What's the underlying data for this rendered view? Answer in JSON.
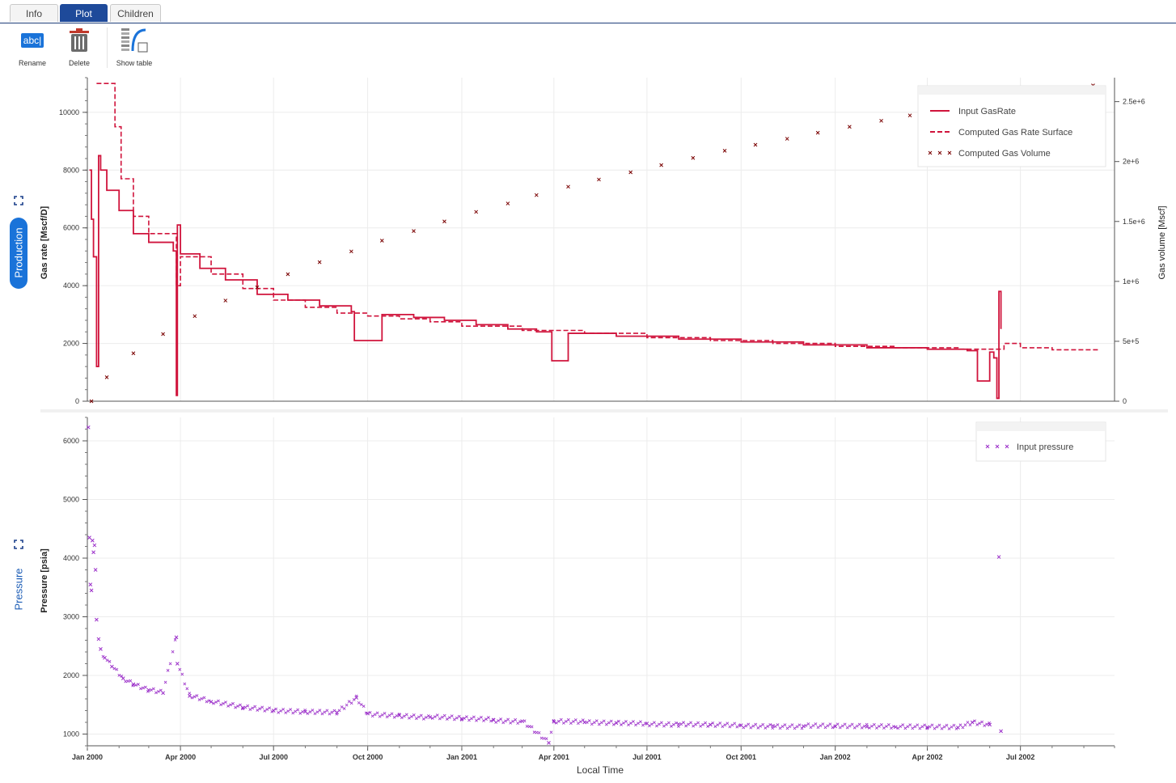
{
  "tabs": [
    {
      "label": "Info",
      "active": false
    },
    {
      "label": "Plot",
      "active": true
    },
    {
      "label": "Children",
      "active": false
    }
  ],
  "toolbar": {
    "rename_icon_text": "abc|",
    "rename_label": "Rename",
    "delete_label": "Delete",
    "show_table_label": "Show table"
  },
  "side_tabs": {
    "production": "Production",
    "pressure": "Pressure"
  },
  "colors": {
    "accent": "#1e4a9a",
    "gas": "#d0143c",
    "volume_marker": "#7a0000",
    "pressure": "#9b2fc9"
  },
  "chart_data": [
    {
      "type": "line",
      "title": "",
      "xlabel": "",
      "ylabel": "Gas rate [Mscf/D]",
      "y2label": "Gas volume [Mscf]",
      "ylim": [
        0,
        11200
      ],
      "y2lim": [
        0,
        2700000
      ],
      "y_ticks": [
        0,
        2000,
        4000,
        6000,
        8000,
        10000
      ],
      "y2_ticks": [
        {
          "value": 0,
          "label": "0"
        },
        {
          "value": 500000,
          "label": "5e+5"
        },
        {
          "value": 1000000,
          "label": "1e+6"
        },
        {
          "value": 1500000,
          "label": "1.5e+6"
        },
        {
          "value": 2000000,
          "label": "2e+6"
        },
        {
          "value": 2500000,
          "label": "2.5e+6"
        }
      ],
      "legend_position": "top-right",
      "grid": true,
      "series": [
        {
          "name": "Input GasRate",
          "style": "solid",
          "axis": "left",
          "x": [
            "2000-01-03",
            "2000-01-05",
            "2000-01-07",
            "2000-01-10",
            "2000-01-12",
            "2000-01-14",
            "2000-01-20",
            "2000-02-01",
            "2000-02-15",
            "2000-03-01",
            "2000-03-25",
            "2000-03-28",
            "2000-03-29",
            "2000-04-01",
            "2000-04-20",
            "2000-05-15",
            "2000-06-15",
            "2000-07-15",
            "2000-08-15",
            "2000-09-15",
            "2000-09-18",
            "2000-10-15",
            "2000-11-15",
            "2000-12-15",
            "2001-01-15",
            "2001-02-15",
            "2001-03-15",
            "2001-03-30",
            "2001-04-15",
            "2001-06-01",
            "2001-08-01",
            "2001-10-01",
            "2001-12-01",
            "2002-02-01",
            "2002-04-01",
            "2002-05-10",
            "2002-05-20",
            "2002-06-01",
            "2002-06-05",
            "2002-06-08",
            "2002-06-10",
            "2002-06-12"
          ],
          "y": [
            8000,
            6300,
            5000,
            1200,
            8500,
            8000,
            7300,
            6600,
            5800,
            5500,
            5200,
            200,
            6100,
            5100,
            4600,
            4200,
            3700,
            3500,
            3300,
            3100,
            2100,
            3000,
            2900,
            2800,
            2650,
            2500,
            2400,
            1400,
            2350,
            2250,
            2150,
            2050,
            1950,
            1850,
            1800,
            1750,
            700,
            1700,
            1500,
            100,
            3800,
            2500
          ]
        },
        {
          "name": "Computed Gas Rate Surface",
          "style": "dashed",
          "axis": "left",
          "x": [
            "2000-01-10",
            "2000-01-20",
            "2000-01-28",
            "2000-02-03",
            "2000-02-15",
            "2000-03-01",
            "2000-03-28",
            "2000-04-01",
            "2000-05-01",
            "2000-06-01",
            "2000-07-01",
            "2000-08-01",
            "2000-09-01",
            "2000-10-01",
            "2000-11-01",
            "2000-12-01",
            "2001-01-01",
            "2001-03-01",
            "2001-05-01",
            "2001-07-01",
            "2001-09-01",
            "2001-11-01",
            "2002-01-01",
            "2002-03-01",
            "2002-05-01",
            "2002-06-15",
            "2002-07-01",
            "2002-08-01",
            "2002-09-15"
          ],
          "y": [
            11000,
            11000,
            9500,
            7700,
            6400,
            5800,
            4000,
            5000,
            4400,
            3900,
            3500,
            3250,
            3050,
            2950,
            2850,
            2750,
            2600,
            2450,
            2350,
            2200,
            2100,
            2000,
            1900,
            1850,
            1800,
            2000,
            1850,
            1780,
            1720
          ]
        },
        {
          "name": "Computed Gas Volume",
          "style": "markers",
          "axis": "right",
          "x": [
            "2000-01-05",
            "2000-01-20",
            "2000-02-15",
            "2000-03-15",
            "2000-04-15",
            "2000-05-15",
            "2000-06-15",
            "2000-07-15",
            "2000-08-15",
            "2000-09-15",
            "2000-10-15",
            "2000-11-15",
            "2000-12-15",
            "2001-01-15",
            "2001-02-15",
            "2001-03-15",
            "2001-04-15",
            "2001-05-15",
            "2001-06-15",
            "2001-07-15",
            "2001-08-15",
            "2001-09-15",
            "2001-10-15",
            "2001-11-15",
            "2001-12-15",
            "2002-01-15",
            "2002-02-15",
            "2002-03-15",
            "2002-04-15",
            "2002-05-15",
            "2002-06-15",
            "2002-07-15",
            "2002-08-15",
            "2002-09-10"
          ],
          "y": [
            0,
            200000,
            400000,
            560000,
            710000,
            840000,
            950000,
            1060000,
            1160000,
            1250000,
            1340000,
            1420000,
            1500000,
            1580000,
            1650000,
            1720000,
            1790000,
            1850000,
            1910000,
            1970000,
            2030000,
            2090000,
            2140000,
            2190000,
            2240000,
            2290000,
            2340000,
            2385000,
            2430000,
            2475000,
            2515000,
            2555000,
            2595000,
            2635000
          ]
        }
      ]
    },
    {
      "type": "scatter",
      "title": "",
      "xlabel": "Local Time",
      "ylabel": "Pressure [psia]",
      "ylim": [
        800,
        6400
      ],
      "y_ticks": [
        1000,
        2000,
        3000,
        4000,
        5000,
        6000
      ],
      "x_ticks": [
        "Jan 2000",
        "Apr 2000",
        "Jul 2000",
        "Oct 2000",
        "Jan 2001",
        "Apr 2001",
        "Jul 2001",
        "Oct 2001",
        "Jan 2002",
        "Apr 2002",
        "Jul 2002"
      ],
      "legend_position": "top-right",
      "grid": true,
      "series": [
        {
          "name": "Input pressure",
          "x": [
            "2000-01-02",
            "2000-01-03",
            "2000-01-04",
            "2000-01-05",
            "2000-01-06",
            "2000-01-07",
            "2000-01-08",
            "2000-01-09",
            "2000-01-10",
            "2000-01-12",
            "2000-01-14",
            "2000-01-18",
            "2000-01-25",
            "2000-02-05",
            "2000-02-15",
            "2000-03-01",
            "2000-03-15",
            "2000-03-28",
            "2000-03-29",
            "2000-04-10",
            "2000-05-01",
            "2000-06-01",
            "2000-07-01",
            "2000-08-01",
            "2000-09-01",
            "2000-09-20",
            "2000-10-01",
            "2000-11-01",
            "2000-12-01",
            "2001-01-01",
            "2001-02-01",
            "2001-03-01",
            "2001-03-27",
            "2001-04-01",
            "2001-05-01",
            "2001-06-01",
            "2001-07-01",
            "2001-08-01",
            "2001-09-01",
            "2001-10-01",
            "2001-11-01",
            "2001-12-01",
            "2002-01-01",
            "2002-02-01",
            "2002-03-01",
            "2002-04-01",
            "2002-05-01",
            "2002-05-15",
            "2002-06-01",
            "2002-06-10",
            "2002-06-12"
          ],
          "y": [
            6230,
            4350,
            3550,
            3450,
            4300,
            4100,
            4220,
            3800,
            2950,
            2620,
            2450,
            2300,
            2150,
            1950,
            1850,
            1750,
            1700,
            2650,
            2200,
            1650,
            1550,
            1450,
            1400,
            1380,
            1370,
            1620,
            1350,
            1320,
            1290,
            1260,
            1240,
            1220,
            850,
            1210,
            1200,
            1190,
            1180,
            1170,
            1160,
            1150,
            1140,
            1135,
            1130,
            1125,
            1120,
            1115,
            1110,
            1200,
            1160,
            4020,
            1050
          ]
        }
      ]
    }
  ]
}
